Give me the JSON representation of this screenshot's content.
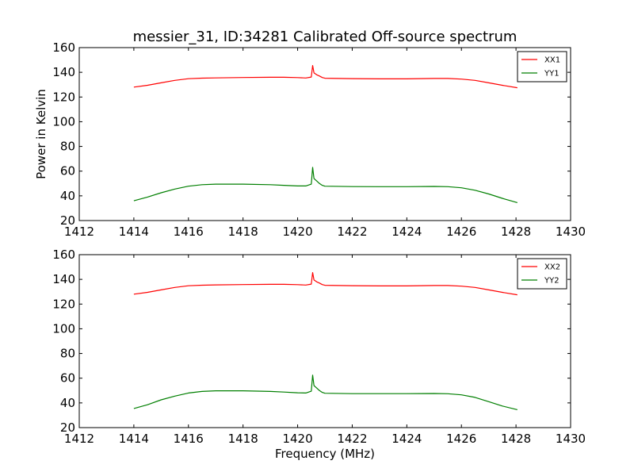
{
  "figure": {
    "title": "messier_31, ID:34281 Calibrated Off-source spectrum",
    "background": "#ffffff"
  },
  "chart_data": [
    {
      "type": "line",
      "title": "messier_31, ID:34281 Calibrated Off-source spectrum",
      "xlabel": "",
      "ylabel": "Power in Kelvin",
      "xlim": [
        1412,
        1430
      ],
      "ylim": [
        20,
        160
      ],
      "xticks": [
        "1412",
        "1414",
        "1416",
        "1418",
        "1420",
        "1422",
        "1424",
        "1426",
        "1428",
        "1430"
      ],
      "yticks": [
        "20",
        "40",
        "60",
        "80",
        "100",
        "120",
        "140",
        "160"
      ],
      "grid": false,
      "legend_position": "top-right",
      "series": [
        {
          "name": "XX1",
          "color": "#ff0000",
          "x": [
            1414.0,
            1414.5,
            1415.0,
            1415.5,
            1416.0,
            1416.5,
            1417.0,
            1418.0,
            1419.0,
            1419.5,
            1420.0,
            1420.3,
            1420.5,
            1420.55,
            1420.6,
            1420.7,
            1420.8,
            1420.9,
            1421.0,
            1422.0,
            1423.0,
            1424.0,
            1425.0,
            1425.5,
            1426.0,
            1426.5,
            1427.0,
            1427.5,
            1428.05
          ],
          "y": [
            128.0,
            129.5,
            131.5,
            133.5,
            134.8,
            135.3,
            135.5,
            135.8,
            136.0,
            136.0,
            135.7,
            135.4,
            136.2,
            145.5,
            139.5,
            138.0,
            137.0,
            135.8,
            135.2,
            134.9,
            134.7,
            134.7,
            135.0,
            135.0,
            134.5,
            133.5,
            131.5,
            129.5,
            127.5
          ]
        },
        {
          "name": "YY1",
          "color": "#007f00",
          "x": [
            1414.0,
            1414.5,
            1415.0,
            1415.5,
            1416.0,
            1416.5,
            1417.0,
            1418.0,
            1419.0,
            1419.5,
            1420.0,
            1420.3,
            1420.5,
            1420.55,
            1420.6,
            1420.7,
            1420.8,
            1420.9,
            1421.0,
            1422.0,
            1423.0,
            1424.0,
            1425.0,
            1425.5,
            1426.0,
            1426.5,
            1427.0,
            1427.5,
            1428.05
          ],
          "y": [
            36.0,
            39.0,
            42.5,
            45.5,
            47.8,
            49.0,
            49.5,
            49.5,
            49.0,
            48.5,
            48.0,
            48.0,
            49.5,
            63.0,
            54.0,
            52.0,
            50.0,
            48.5,
            47.8,
            47.5,
            47.4,
            47.4,
            47.6,
            47.4,
            46.5,
            44.5,
            41.5,
            38.0,
            34.5
          ]
        }
      ]
    },
    {
      "type": "line",
      "title": "",
      "xlabel": "Frequency (MHz)",
      "ylabel": "",
      "xlim": [
        1412,
        1430
      ],
      "ylim": [
        20,
        160
      ],
      "xticks": [
        "1412",
        "1414",
        "1416",
        "1418",
        "1420",
        "1422",
        "1424",
        "1426",
        "1428",
        "1430"
      ],
      "yticks": [
        "20",
        "40",
        "60",
        "80",
        "100",
        "120",
        "140",
        "160"
      ],
      "grid": false,
      "legend_position": "top-right",
      "series": [
        {
          "name": "XX2",
          "color": "#ff0000",
          "x": [
            1414.0,
            1414.5,
            1415.0,
            1415.5,
            1416.0,
            1416.5,
            1417.0,
            1418.0,
            1419.0,
            1419.5,
            1420.0,
            1420.3,
            1420.5,
            1420.55,
            1420.6,
            1420.7,
            1420.8,
            1420.9,
            1421.0,
            1422.0,
            1423.0,
            1424.0,
            1425.0,
            1425.5,
            1426.0,
            1426.5,
            1427.0,
            1427.5,
            1428.05
          ],
          "y": [
            128.0,
            129.5,
            131.5,
            133.5,
            134.8,
            135.3,
            135.5,
            135.8,
            136.0,
            136.0,
            135.7,
            135.4,
            136.2,
            145.5,
            139.5,
            138.0,
            137.0,
            135.8,
            135.2,
            134.9,
            134.7,
            134.7,
            135.0,
            135.0,
            134.5,
            133.5,
            131.5,
            129.5,
            127.5
          ]
        },
        {
          "name": "YY2",
          "color": "#007f00",
          "x": [
            1414.0,
            1414.5,
            1415.0,
            1415.5,
            1416.0,
            1416.5,
            1417.0,
            1418.0,
            1419.0,
            1419.5,
            1420.0,
            1420.3,
            1420.5,
            1420.55,
            1420.6,
            1420.7,
            1420.8,
            1420.9,
            1421.0,
            1422.0,
            1423.0,
            1424.0,
            1425.0,
            1425.5,
            1426.0,
            1426.5,
            1427.0,
            1427.5,
            1428.05
          ],
          "y": [
            35.5,
            38.5,
            42.5,
            45.5,
            48.0,
            49.3,
            49.8,
            49.8,
            49.3,
            48.8,
            48.2,
            48.0,
            49.5,
            62.5,
            54.0,
            52.0,
            50.0,
            48.5,
            47.8,
            47.5,
            47.5,
            47.5,
            47.6,
            47.4,
            46.5,
            44.5,
            41.0,
            37.5,
            34.5
          ]
        }
      ]
    }
  ]
}
